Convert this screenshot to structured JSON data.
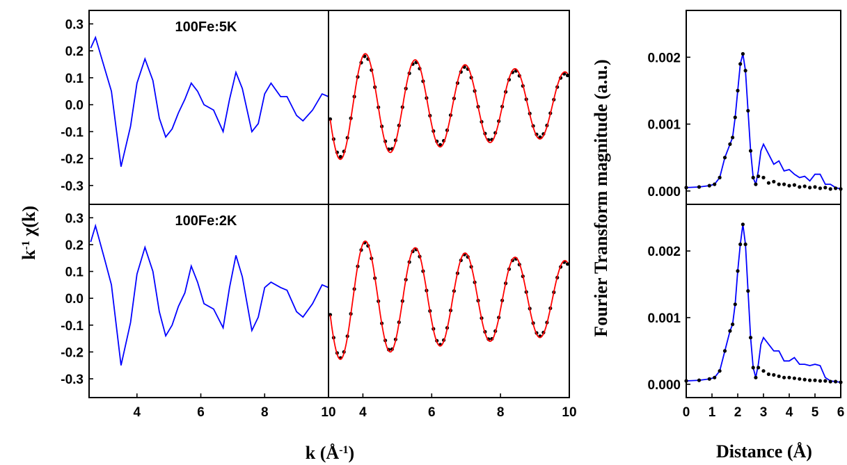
{
  "chart_data": [
    {
      "type": "line",
      "panel": "left-top",
      "label": "100Fe:5K",
      "ylim": [
        -0.37,
        0.35
      ],
      "xlim": [
        2.5,
        10
      ],
      "yticks": [
        "-0.3",
        "-0.2",
        "-0.1",
        "0.0",
        "0.1",
        "0.2",
        "0.3"
      ],
      "series": [
        {
          "color": "#0000ff",
          "x": [
            2.55,
            2.7,
            3.0,
            3.2,
            3.5,
            3.8,
            4.0,
            4.25,
            4.5,
            4.7,
            4.9,
            5.1,
            5.3,
            5.5,
            5.7,
            5.9,
            6.1,
            6.4,
            6.7,
            6.9,
            7.1,
            7.3,
            7.6,
            7.8,
            8.0,
            8.2,
            8.5,
            8.7,
            9.0,
            9.2,
            9.5,
            9.8,
            10.0
          ],
          "y": [
            0.21,
            0.25,
            0.13,
            0.05,
            -0.23,
            -0.08,
            0.08,
            0.17,
            0.09,
            -0.05,
            -0.12,
            -0.09,
            -0.03,
            0.02,
            0.08,
            0.05,
            0.0,
            -0.02,
            -0.1,
            0.02,
            0.12,
            0.06,
            -0.1,
            -0.07,
            0.04,
            0.08,
            0.03,
            0.03,
            -0.04,
            -0.06,
            -0.02,
            0.04,
            0.03
          ]
        }
      ]
    },
    {
      "type": "line",
      "panel": "left-bottom",
      "label": "100Fe:2K",
      "ylim": [
        -0.37,
        0.35
      ],
      "xlim": [
        2.5,
        10
      ],
      "xticks": [
        "4",
        "6",
        "8",
        "10"
      ],
      "yticks": [
        "-0.3",
        "-0.2",
        "-0.1",
        "0.0",
        "0.1",
        "0.2",
        "0.3"
      ],
      "series": [
        {
          "color": "#0000ff",
          "x": [
            2.55,
            2.7,
            3.0,
            3.2,
            3.5,
            3.8,
            4.0,
            4.25,
            4.5,
            4.7,
            4.9,
            5.1,
            5.3,
            5.5,
            5.7,
            5.9,
            6.1,
            6.4,
            6.7,
            6.9,
            7.1,
            7.3,
            7.6,
            7.8,
            8.0,
            8.2,
            8.5,
            8.7,
            9.0,
            9.2,
            9.5,
            9.8,
            10.0
          ],
          "y": [
            0.21,
            0.27,
            0.14,
            0.05,
            -0.25,
            -0.09,
            0.09,
            0.19,
            0.1,
            -0.05,
            -0.14,
            -0.1,
            -0.03,
            0.02,
            0.12,
            0.06,
            -0.02,
            -0.04,
            -0.11,
            0.04,
            0.16,
            0.08,
            -0.12,
            -0.07,
            0.04,
            0.06,
            0.04,
            0.03,
            -0.05,
            -0.07,
            -0.02,
            0.05,
            0.04
          ]
        }
      ]
    },
    {
      "type": "line",
      "panel": "middle-top",
      "ylim": [
        -0.37,
        0.35
      ],
      "xlim": [
        3.0,
        10
      ],
      "series": [
        {
          "name": "",
          "color": "#000000",
          "style": "dots",
          "amplitude": [
            0.2,
            0.07
          ],
          "period": 1.45,
          "phase_x": 3.35
        },
        {
          "name": "",
          "color": "#ff0000",
          "style": "line",
          "amplitude": [
            0.21,
            0.075
          ],
          "period": 1.45,
          "phase_x": 3.35
        }
      ]
    },
    {
      "type": "line",
      "panel": "middle-bottom",
      "ylim": [
        -0.37,
        0.35
      ],
      "xlim": [
        3.0,
        10
      ],
      "xticks": [
        "4",
        "6",
        "8",
        "10"
      ],
      "series": [
        {
          "name": "",
          "color": "#000000",
          "style": "dots",
          "amplitude": [
            0.23,
            0.085
          ],
          "period": 1.45,
          "phase_x": 3.35
        },
        {
          "name": "",
          "color": "#ff0000",
          "style": "line",
          "amplitude": [
            0.235,
            0.09
          ],
          "period": 1.45,
          "phase_x": 3.35
        }
      ]
    },
    {
      "type": "line",
      "panel": "right-top",
      "ylim": [
        -0.0002,
        0.0027
      ],
      "xlim": [
        0,
        6
      ],
      "yticks": [
        "0.000",
        "0.001",
        "0.002"
      ],
      "series": [
        {
          "color": "#0000ff",
          "style": "line",
          "x": [
            0,
            0.5,
            0.9,
            1.1,
            1.3,
            1.5,
            1.7,
            1.8,
            1.9,
            2.0,
            2.1,
            2.2,
            2.3,
            2.4,
            2.5,
            2.6,
            2.7,
            2.8,
            2.9,
            3.0,
            3.2,
            3.4,
            3.6,
            3.8,
            4.0,
            4.2,
            4.4,
            4.6,
            4.8,
            5.0,
            5.2,
            5.4,
            5.6,
            5.8,
            6.0
          ],
          "y": [
            5e-05,
            6e-05,
            8e-05,
            0.0001,
            0.0002,
            0.0005,
            0.0007,
            0.0008,
            0.0011,
            0.0015,
            0.0019,
            0.00205,
            0.0018,
            0.0012,
            0.0006,
            0.0002,
            0.0001,
            0.0003,
            0.0006,
            0.0007,
            0.00055,
            0.0004,
            0.00045,
            0.0003,
            0.00032,
            0.00025,
            0.0002,
            0.00022,
            0.00015,
            0.00025,
            0.00025,
            0.0001,
            0.0001,
            5e-05,
            3e-05
          ]
        },
        {
          "color": "#000000",
          "style": "dots",
          "x": [
            0,
            0.5,
            0.9,
            1.1,
            1.3,
            1.5,
            1.7,
            1.8,
            1.9,
            2.0,
            2.1,
            2.2,
            2.3,
            2.4,
            2.5,
            2.6,
            2.7,
            2.8,
            3.0,
            3.2,
            3.4,
            3.6,
            3.8,
            4.0,
            4.2,
            4.4,
            4.6,
            4.8,
            5.0,
            5.2,
            5.4,
            5.6,
            5.8,
            6.0
          ],
          "y": [
            5e-05,
            6e-05,
            8e-05,
            0.0001,
            0.0002,
            0.0005,
            0.0007,
            0.0008,
            0.0011,
            0.0015,
            0.0019,
            0.00205,
            0.0018,
            0.0012,
            0.0006,
            0.0002,
            0.0001,
            0.00022,
            0.0002,
            0.00012,
            0.00014,
            0.0001,
            0.0001,
            8e-05,
            9e-05,
            6e-05,
            7e-05,
            5e-05,
            6e-05,
            4e-05,
            5e-05,
            3e-05,
            4e-05,
            3e-05
          ]
        }
      ]
    },
    {
      "type": "line",
      "panel": "right-bottom",
      "ylim": [
        -0.0002,
        0.0027
      ],
      "xlim": [
        0,
        6
      ],
      "xticks": [
        "0",
        "1",
        "2",
        "3",
        "4",
        "5",
        "6"
      ],
      "yticks": [
        "0.000",
        "0.001",
        "0.002"
      ],
      "series": [
        {
          "color": "#0000ff",
          "style": "line",
          "x": [
            0,
            0.5,
            0.9,
            1.1,
            1.3,
            1.5,
            1.7,
            1.8,
            1.9,
            2.0,
            2.1,
            2.2,
            2.3,
            2.4,
            2.5,
            2.6,
            2.7,
            2.8,
            2.9,
            3.0,
            3.2,
            3.4,
            3.6,
            3.8,
            4.0,
            4.2,
            4.4,
            4.6,
            4.8,
            5.0,
            5.2,
            5.4,
            5.6,
            5.8,
            6.0
          ],
          "y": [
            5e-05,
            6e-05,
            8e-05,
            0.0001,
            0.0002,
            0.0005,
            0.0008,
            0.0009,
            0.0012,
            0.0017,
            0.0021,
            0.0024,
            0.0021,
            0.0014,
            0.0007,
            0.00025,
            0.0001,
            0.0003,
            0.0006,
            0.0007,
            0.0006,
            0.0005,
            0.0005,
            0.00035,
            0.00035,
            0.0004,
            0.0003,
            0.0003,
            0.00028,
            0.0003,
            0.00028,
            0.0001,
            5e-05,
            4e-05,
            3e-05
          ]
        },
        {
          "color": "#000000",
          "style": "dots",
          "x": [
            0,
            0.5,
            0.9,
            1.1,
            1.3,
            1.5,
            1.7,
            1.8,
            1.9,
            2.0,
            2.1,
            2.2,
            2.3,
            2.4,
            2.5,
            2.6,
            2.7,
            2.8,
            3.0,
            3.2,
            3.4,
            3.6,
            3.8,
            4.0,
            4.2,
            4.4,
            4.6,
            4.8,
            5.0,
            5.2,
            5.4,
            5.6,
            5.8,
            6.0
          ],
          "y": [
            5e-05,
            6e-05,
            8e-05,
            0.0001,
            0.0002,
            0.0005,
            0.0008,
            0.0009,
            0.0012,
            0.0017,
            0.0021,
            0.0024,
            0.0021,
            0.0014,
            0.0007,
            0.00025,
            0.0001,
            0.00025,
            0.0002,
            0.00015,
            0.00014,
            0.00012,
            0.0001,
            0.0001,
            9e-05,
            8e-05,
            7e-05,
            6e-05,
            6e-05,
            5e-05,
            5e-05,
            4e-05,
            4e-05,
            3e-05
          ]
        }
      ]
    }
  ],
  "axes": {
    "ylabel_left": "k",
    "ylabel_left_sup": "-1",
    "ylabel_left_rest": " χ(k)",
    "xlabel_left": "k (Å",
    "xlabel_left_sup": "-1",
    "xlabel_left_close": ")",
    "ylabel_right": "Fourier Transform magnitude (a.u.)",
    "xlabel_right": "Distance (Å)"
  }
}
